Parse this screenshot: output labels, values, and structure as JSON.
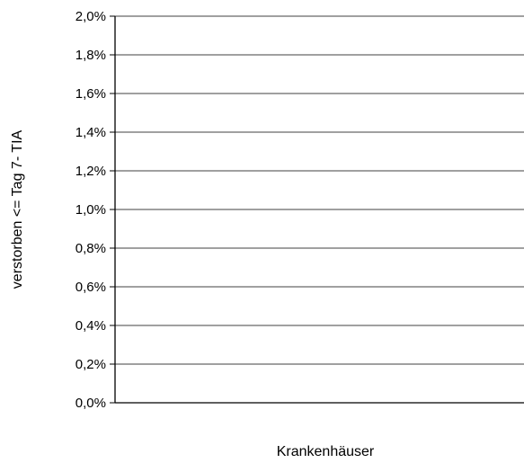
{
  "chart_data": {
    "type": "bar",
    "title": "",
    "xlabel": "Krankenhäuser",
    "ylabel": "verstorben <= Tag 7- TIA",
    "ylim": [
      0,
      0.02
    ],
    "yticks": [
      0.0,
      0.002,
      0.004,
      0.006,
      0.008,
      0.01,
      0.012,
      0.014,
      0.016,
      0.018,
      0.02
    ],
    "ytick_labels": [
      "0,0%",
      "0,2%",
      "0,4%",
      "0,6%",
      "0,8%",
      "1,0%",
      "1,2%",
      "1,4%",
      "1,6%",
      "1,8%",
      "2,0%"
    ],
    "categories": [],
    "values": [],
    "grid": true,
    "legend": "none"
  }
}
